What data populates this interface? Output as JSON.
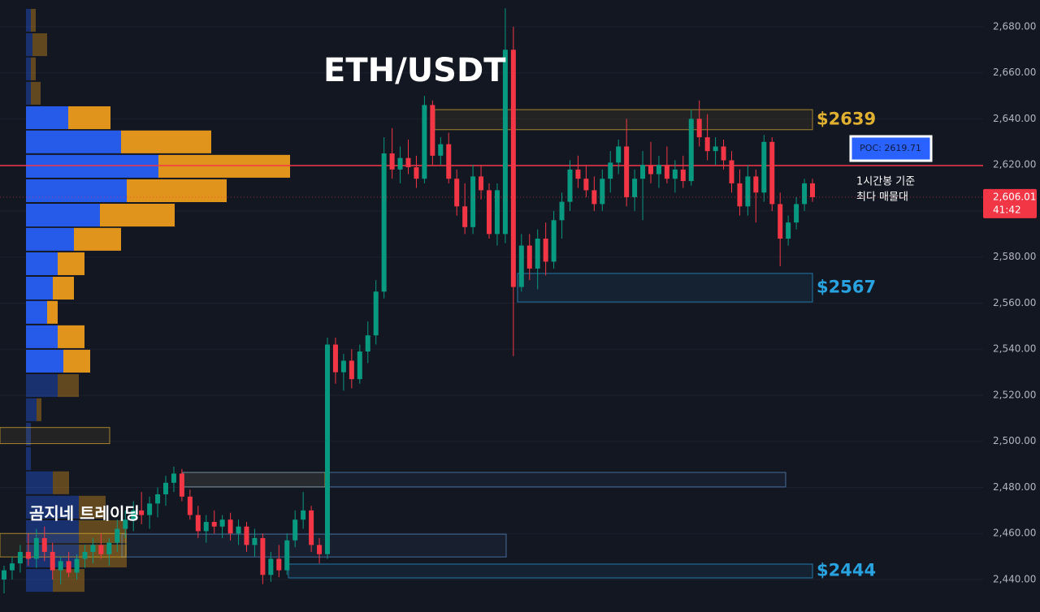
{
  "chart_data": {
    "type": "candlestick",
    "title": "ETH/USDT",
    "watermark": "곰지네 트레이딩",
    "ylim": [
      2425.9,
      2691.6
    ],
    "yticks": [
      {
        "value": 2440,
        "label": "2,440.00"
      },
      {
        "value": 2460,
        "label": "2,460.00"
      },
      {
        "value": 2480,
        "label": "2,480.00"
      },
      {
        "value": 2500,
        "label": "2,500.00"
      },
      {
        "value": 2520,
        "label": "2,520.00"
      },
      {
        "value": 2540,
        "label": "2,540.00"
      },
      {
        "value": 2560,
        "label": "2,560.00"
      },
      {
        "value": 2580,
        "label": "2,580.00"
      },
      {
        "value": 2600,
        "label": "2,600.00"
      },
      {
        "value": 2620,
        "label": "2,620.00"
      },
      {
        "value": 2640,
        "label": "2,640.00"
      },
      {
        "value": 2660,
        "label": "2,660.00"
      },
      {
        "value": 2680,
        "label": "2,680.00"
      }
    ],
    "grid": true,
    "up_color": "#089981",
    "down_color": "#f23645",
    "open": [
      2440,
      2444,
      2447,
      2452,
      2449,
      2458,
      2452,
      2444,
      2448,
      2443,
      2449,
      2452,
      2455,
      2451,
      2456,
      2462,
      2466,
      2470,
      2468,
      2473,
      2477,
      2482,
      2486,
      2476,
      2468,
      2461,
      2465,
      2463,
      2466,
      2460,
      2463,
      2455,
      2458,
      2442,
      2449,
      2444,
      2457,
      2466,
      2470,
      2455,
      2451,
      2542,
      2530,
      2535,
      2527,
      2539,
      2546,
      2565,
      2625,
      2618,
      2623,
      2619,
      2614,
      2646,
      2624,
      2629,
      2614,
      2602,
      2593,
      2615,
      2609,
      2590,
      2590,
      2670,
      2567,
      2585,
      2575,
      2588,
      2578,
      2596,
      2604,
      2618,
      2614,
      2609,
      2603,
      2614,
      2621,
      2628,
      2606,
      2614,
      2620,
      2616,
      2620,
      2614,
      2618,
      2613,
      2640,
      2632,
      2626,
      2628,
      2622,
      2612,
      2602,
      2615,
      2608,
      2630,
      2603,
      2588,
      2595,
      2603,
      2612
    ],
    "high": [
      2446,
      2450,
      2455,
      2460,
      2462,
      2463,
      2456,
      2450,
      2452,
      2451,
      2455,
      2458,
      2460,
      2458,
      2466,
      2470,
      2474,
      2478,
      2476,
      2480,
      2485,
      2489,
      2488,
      2479,
      2472,
      2468,
      2470,
      2468,
      2469,
      2466,
      2465,
      2462,
      2460,
      2452,
      2455,
      2460,
      2470,
      2478,
      2472,
      2458,
      2545,
      2545,
      2538,
      2540,
      2542,
      2552,
      2570,
      2632,
      2636,
      2628,
      2631,
      2624,
      2650,
      2648,
      2632,
      2634,
      2618,
      2612,
      2620,
      2620,
      2612,
      2612,
      2688,
      2680,
      2590,
      2590,
      2592,
      2595,
      2600,
      2608,
      2622,
      2624,
      2620,
      2615,
      2618,
      2626,
      2631,
      2640,
      2618,
      2626,
      2630,
      2624,
      2628,
      2622,
      2624,
      2644,
      2648,
      2642,
      2632,
      2631,
      2626,
      2618,
      2620,
      2618,
      2633,
      2632,
      2608,
      2598,
      2606,
      2614,
      2614
    ],
    "low": [
      2434,
      2440,
      2443,
      2446,
      2445,
      2448,
      2440,
      2438,
      2441,
      2440,
      2445,
      2447,
      2449,
      2446,
      2452,
      2458,
      2461,
      2464,
      2462,
      2467,
      2472,
      2478,
      2474,
      2466,
      2458,
      2456,
      2460,
      2458,
      2457,
      2455,
      2452,
      2450,
      2438,
      2439,
      2441,
      2442,
      2454,
      2462,
      2452,
      2447,
      2449,
      2525,
      2522,
      2523,
      2525,
      2534,
      2542,
      2562,
      2614,
      2612,
      2616,
      2610,
      2612,
      2620,
      2620,
      2612,
      2598,
      2590,
      2590,
      2605,
      2588,
      2585,
      2586,
      2537,
      2565,
      2570,
      2566,
      2572,
      2575,
      2588,
      2600,
      2610,
      2606,
      2600,
      2600,
      2608,
      2616,
      2602,
      2600,
      2596,
      2612,
      2610,
      2612,
      2608,
      2610,
      2611,
      2628,
      2622,
      2620,
      2618,
      2608,
      2598,
      2598,
      2595,
      2604,
      2600,
      2576,
      2585,
      2592,
      2600,
      2604
    ],
    "close": [
      2444,
      2447,
      2452,
      2449,
      2458,
      2452,
      2444,
      2448,
      2443,
      2449,
      2452,
      2455,
      2451,
      2456,
      2462,
      2466,
      2470,
      2468,
      2473,
      2477,
      2482,
      2486,
      2476,
      2468,
      2461,
      2465,
      2463,
      2466,
      2460,
      2463,
      2455,
      2458,
      2442,
      2449,
      2444,
      2457,
      2466,
      2470,
      2455,
      2451,
      2542,
      2530,
      2535,
      2527,
      2539,
      2546,
      2565,
      2625,
      2618,
      2623,
      2619,
      2614,
      2646,
      2624,
      2629,
      2614,
      2602,
      2593,
      2615,
      2609,
      2590,
      2609,
      2670,
      2567,
      2585,
      2575,
      2588,
      2578,
      2596,
      2604,
      2618,
      2614,
      2609,
      2603,
      2614,
      2621,
      2628,
      2606,
      2614,
      2620,
      2616,
      2620,
      2614,
      2618,
      2613,
      2640,
      2632,
      2626,
      2628,
      2622,
      2612,
      2602,
      2615,
      2608,
      2630,
      2603,
      2588,
      2595,
      2603,
      2612,
      2606.01
    ],
    "volume_profile": {
      "prices": [
        2682.8,
        2672.2,
        2661.7,
        2651.1,
        2640.5,
        2630.0,
        2619.4,
        2608.8,
        2598.2,
        2587.7,
        2577.1,
        2566.5,
        2556.0,
        2545.4,
        2534.8,
        2524.2,
        2513.7,
        2503.1,
        2492.5,
        2482.0,
        2471.4,
        2460.8,
        2450.2,
        2439.6
      ],
      "buy": [
        6,
        8,
        6,
        6,
        52,
        117,
        163,
        124,
        91,
        59,
        39,
        33,
        26,
        39,
        46,
        39,
        13,
        6,
        6,
        33,
        65,
        65,
        65,
        33
      ],
      "sell": [
        6,
        18,
        6,
        12,
        52,
        111,
        162,
        123,
        92,
        58,
        33,
        26,
        13,
        33,
        33,
        26,
        6,
        0,
        0,
        20,
        33,
        59,
        59,
        39
      ],
      "buy_color": "#2962ff",
      "sell_color": "#f7a21b"
    },
    "zones": [
      {
        "label": "$2639",
        "top": 2644.0,
        "bottom": 2635.3,
        "color": "#e0b030"
      },
      {
        "label": "$2567",
        "top": 2572.9,
        "bottom": 2560.5,
        "color": "#29a3e0"
      },
      {
        "top": 2506.0,
        "bottom": 2499.0,
        "color": "#e0b030"
      },
      {
        "top": 2486.5,
        "bottom": 2480.2,
        "color": "#e0b030"
      },
      {
        "top": 2486.5,
        "bottom": 2480.2,
        "color": "#5a8fc8"
      },
      {
        "top": 2459.7,
        "bottom": 2449.8,
        "color": "#5a8fc8"
      },
      {
        "top": 2460.0,
        "bottom": 2449.8,
        "color": "#e0b030"
      },
      {
        "label": "$2444",
        "top": 2446.7,
        "bottom": 2440.7,
        "color": "#29a3e0"
      }
    ],
    "poc": {
      "value": 2619.71,
      "label": "POC: 2619.71",
      "color": "#f23645"
    },
    "poc_note": [
      "1시간봉 기준",
      "최다 매물대"
    ],
    "last_price": {
      "value": 2606.01,
      "label": "2,606.01",
      "countdown": "41:42"
    }
  }
}
